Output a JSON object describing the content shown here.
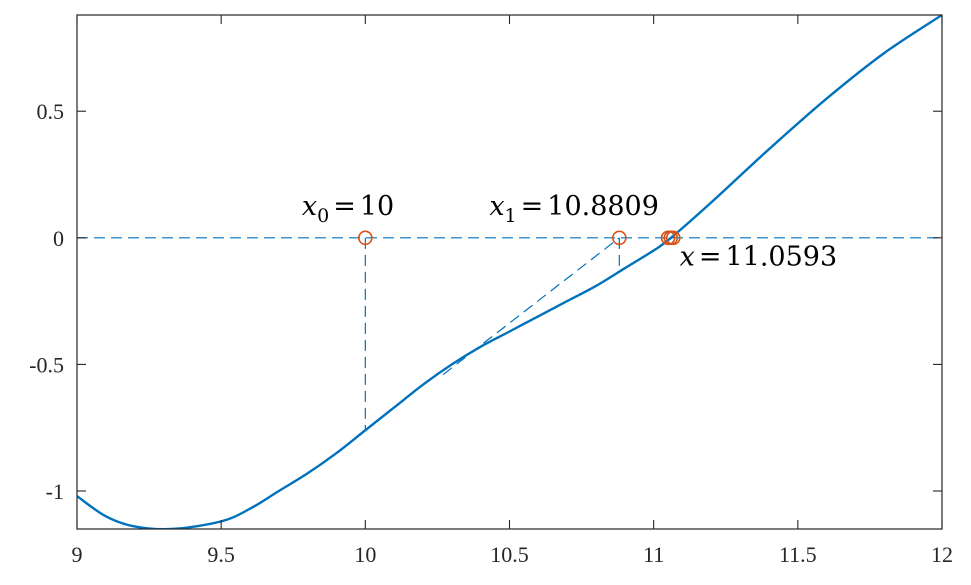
{
  "chart_data": {
    "type": "line",
    "title": "",
    "xlabel": "",
    "ylabel": "",
    "xlim": [
      9,
      12
    ],
    "ylim": [
      -1.15,
      0.88
    ],
    "xticks": [
      9,
      9.5,
      10,
      10.5,
      11,
      11.5,
      12
    ],
    "yticks": [
      -1,
      -0.5,
      0,
      0.5
    ],
    "x_tick_labels": [
      "9",
      "9.5",
      "10",
      "10.5",
      "11",
      "11.5",
      "12"
    ],
    "y_tick_labels": [
      "-1",
      "-0.5",
      "0",
      "0.5"
    ],
    "grid": false,
    "colors": {
      "curve": "#0072bd",
      "markers": "#d95319",
      "axes": "#262626"
    },
    "series": [
      {
        "style": "solid",
        "x": [
          9.0,
          9.1,
          9.2,
          9.33,
          9.5,
          9.6,
          9.7,
          9.8,
          9.9,
          10.0,
          10.1,
          10.2,
          10.3,
          10.4,
          10.5,
          10.6,
          10.7,
          10.8,
          10.9,
          11.0,
          11.06,
          11.2,
          11.4,
          11.6,
          11.8,
          12.0
        ],
        "y": [
          -1.02,
          -1.1,
          -1.14,
          -1.15,
          -1.12,
          -1.07,
          -1.0,
          -0.93,
          -0.85,
          -0.76,
          -0.67,
          -0.58,
          -0.5,
          -0.43,
          -0.37,
          -0.31,
          -0.25,
          -0.19,
          -0.12,
          -0.05,
          0.0,
          0.14,
          0.35,
          0.55,
          0.73,
          0.88
        ]
      }
    ],
    "guides": [
      {
        "style": "dashed",
        "x": [
          9.0,
          12.0
        ],
        "y": [
          0,
          0
        ]
      },
      {
        "style": "dashed",
        "x": [
          10.0,
          10.0
        ],
        "y": [
          0,
          -0.76
        ]
      },
      {
        "style": "dashed",
        "x": [
          10.27,
          10.8809
        ],
        "y": [
          -0.54,
          0
        ]
      },
      {
        "style": "dashed",
        "x": [
          10.8809,
          10.8809
        ],
        "y": [
          0,
          -0.12
        ]
      }
    ],
    "markers": [
      {
        "x": 10.0,
        "y": 0
      },
      {
        "x": 10.8809,
        "y": 0
      },
      {
        "x": 11.05,
        "y": 0
      },
      {
        "x": 11.0593,
        "y": 0
      },
      {
        "x": 11.068,
        "y": 0
      }
    ],
    "annotations": [
      {
        "var": "x",
        "sub": "0",
        "value": "10",
        "x": 9.78,
        "y": 0.09
      },
      {
        "var": "x",
        "sub": "1",
        "value": "10.8809",
        "x": 10.43,
        "y": 0.09
      },
      {
        "var": "x",
        "sub": "",
        "value": "11.0593",
        "x": 11.09,
        "y": -0.11
      }
    ]
  }
}
